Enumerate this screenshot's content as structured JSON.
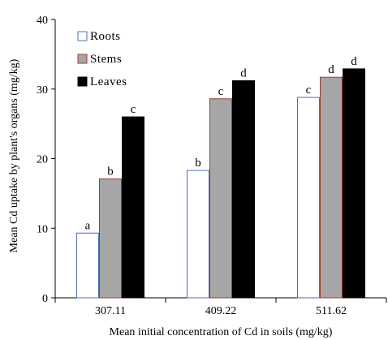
{
  "chart_data": {
    "type": "bar",
    "categories": [
      "307.11",
      "409.22",
      "511.62"
    ],
    "series": [
      {
        "name": "Roots",
        "values": [
          9.3,
          18.3,
          28.8
        ],
        "labels": [
          "a",
          "b",
          "c"
        ],
        "color": "#ffffff",
        "stroke": "#4f6fb0"
      },
      {
        "name": "Stems",
        "values": [
          17.1,
          28.6,
          31.7
        ],
        "labels": [
          "b",
          "c",
          "d"
        ],
        "color": "#a6a6a6",
        "stroke": "#a0392f"
      },
      {
        "name": "Leaves",
        "values": [
          26.0,
          31.2,
          32.9
        ],
        "labels": [
          "c",
          "d",
          "d"
        ],
        "color": "#000000",
        "stroke": "#000000"
      }
    ],
    "ylabel": "Mean Cd uptake by plant's organs (mg/kg)",
    "xlabel": "Mean initial concentration of Cd in soils (mg/kg)",
    "ylim": [
      0,
      40
    ],
    "yticks": [
      "0",
      "10",
      "20",
      "30",
      "40"
    ],
    "grid": false,
    "legend_position": "top-left"
  }
}
